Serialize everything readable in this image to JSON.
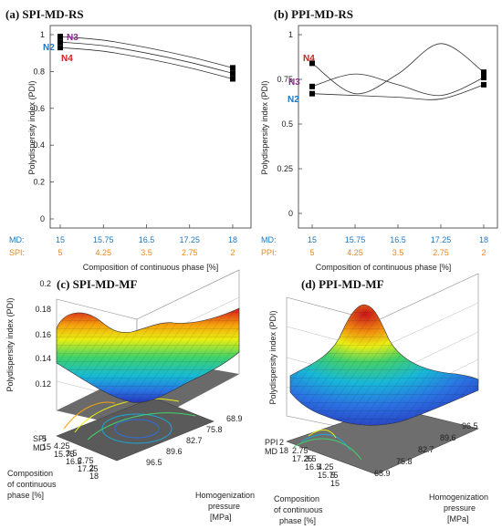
{
  "chart_data": [
    {
      "type": "line",
      "title": "(a) SPI-MD-RS",
      "ylabel": "Polydispersity index (PDI)",
      "xlabel": "Composition of continuous phase [%]",
      "ylim": [
        0,
        1
      ],
      "yticks": [
        "0",
        "0.2",
        "0.4",
        "0.6",
        "0.8",
        "1"
      ],
      "x_md_label": "MD:",
      "x_md": [
        "15",
        "15.75",
        "16.5",
        "17.25",
        "18"
      ],
      "x_protein_label": "SPI:",
      "x_protein": [
        "5",
        "4.25",
        "3.5",
        "2.75",
        "2"
      ],
      "series": [
        {
          "name": "N3",
          "x": [
            15,
            15.75,
            16.5,
            17.25,
            18
          ],
          "y": [
            0.99,
            0.97,
            0.93,
            0.88,
            0.82
          ]
        },
        {
          "name": "N2",
          "x": [
            15,
            15.75,
            16.5,
            17.25,
            18
          ],
          "y": [
            0.96,
            0.94,
            0.9,
            0.85,
            0.79
          ]
        },
        {
          "name": "N4",
          "x": [
            15,
            15.75,
            16.5,
            17.25,
            18
          ],
          "y": [
            0.93,
            0.91,
            0.87,
            0.82,
            0.76
          ]
        }
      ]
    },
    {
      "type": "line",
      "title": "(b) PPI-MD-RS",
      "ylabel": "Polydispersity index (PDI)",
      "xlabel": "Composition of continuous phase [%]",
      "ylim": [
        0,
        1
      ],
      "yticks": [
        "0",
        "0.25",
        "0.5",
        "0.75",
        "1"
      ],
      "x_md_label": "MD:",
      "x_md": [
        "15",
        "15.75",
        "16.5",
        "17.25",
        "18"
      ],
      "x_protein_label": "PPI:",
      "x_protein": [
        "5",
        "4.25",
        "3.5",
        "2.75",
        "2"
      ],
      "series": [
        {
          "name": "N4",
          "x": [
            15,
            15.75,
            16.5,
            17.25,
            18
          ],
          "y": [
            0.84,
            0.67,
            0.78,
            0.95,
            0.79
          ]
        },
        {
          "name": "N3",
          "x": [
            15,
            15.75,
            16.5,
            17.25,
            18
          ],
          "y": [
            0.71,
            0.78,
            0.72,
            0.66,
            0.76
          ]
        },
        {
          "name": "N2",
          "x": [
            15,
            15.75,
            16.5,
            17.25,
            18
          ],
          "y": [
            0.67,
            0.66,
            0.65,
            0.64,
            0.72
          ]
        }
      ]
    },
    {
      "type": "surface3d",
      "title": "(c) SPI-MD-MF",
      "zlabel": "Polydispersity index (PDI)",
      "zticks": [
        "0.12",
        "0.14",
        "0.16",
        "0.18",
        "0.2"
      ],
      "xlabel": "Composition of continuous phase [%]",
      "x_label_top": "SPI",
      "x_label_bottom": "MD",
      "x_ticks_top": [
        "5",
        "4.25",
        "3.5",
        "2.75",
        "2"
      ],
      "x_ticks_bottom": [
        "15",
        "15.75",
        "16.5",
        "17.25",
        "18"
      ],
      "ylabel": "Homogenization pressure [MPa]",
      "y_ticks": [
        "68.9",
        "75.8",
        "82.7",
        "89.6",
        "96.5"
      ]
    },
    {
      "type": "surface3d",
      "title": "(d) PPI-MD-MF",
      "zlabel": "Polydispersity index (PDI)",
      "xlabel": "Composition of continuous phase [%]",
      "x_label_top": "PPI",
      "x_label_bottom": "MD",
      "x_ticks_top": [
        "2",
        "2.75",
        "3.5",
        "4.25",
        "5"
      ],
      "x_ticks_bottom": [
        "18",
        "17.25",
        "16.5",
        "15.75",
        "15"
      ],
      "ylabel": "Homogenization pressure [MPa]",
      "y_ticks": [
        "96.5",
        "89.6",
        "82.7",
        "75.8",
        "68.9"
      ]
    }
  ]
}
